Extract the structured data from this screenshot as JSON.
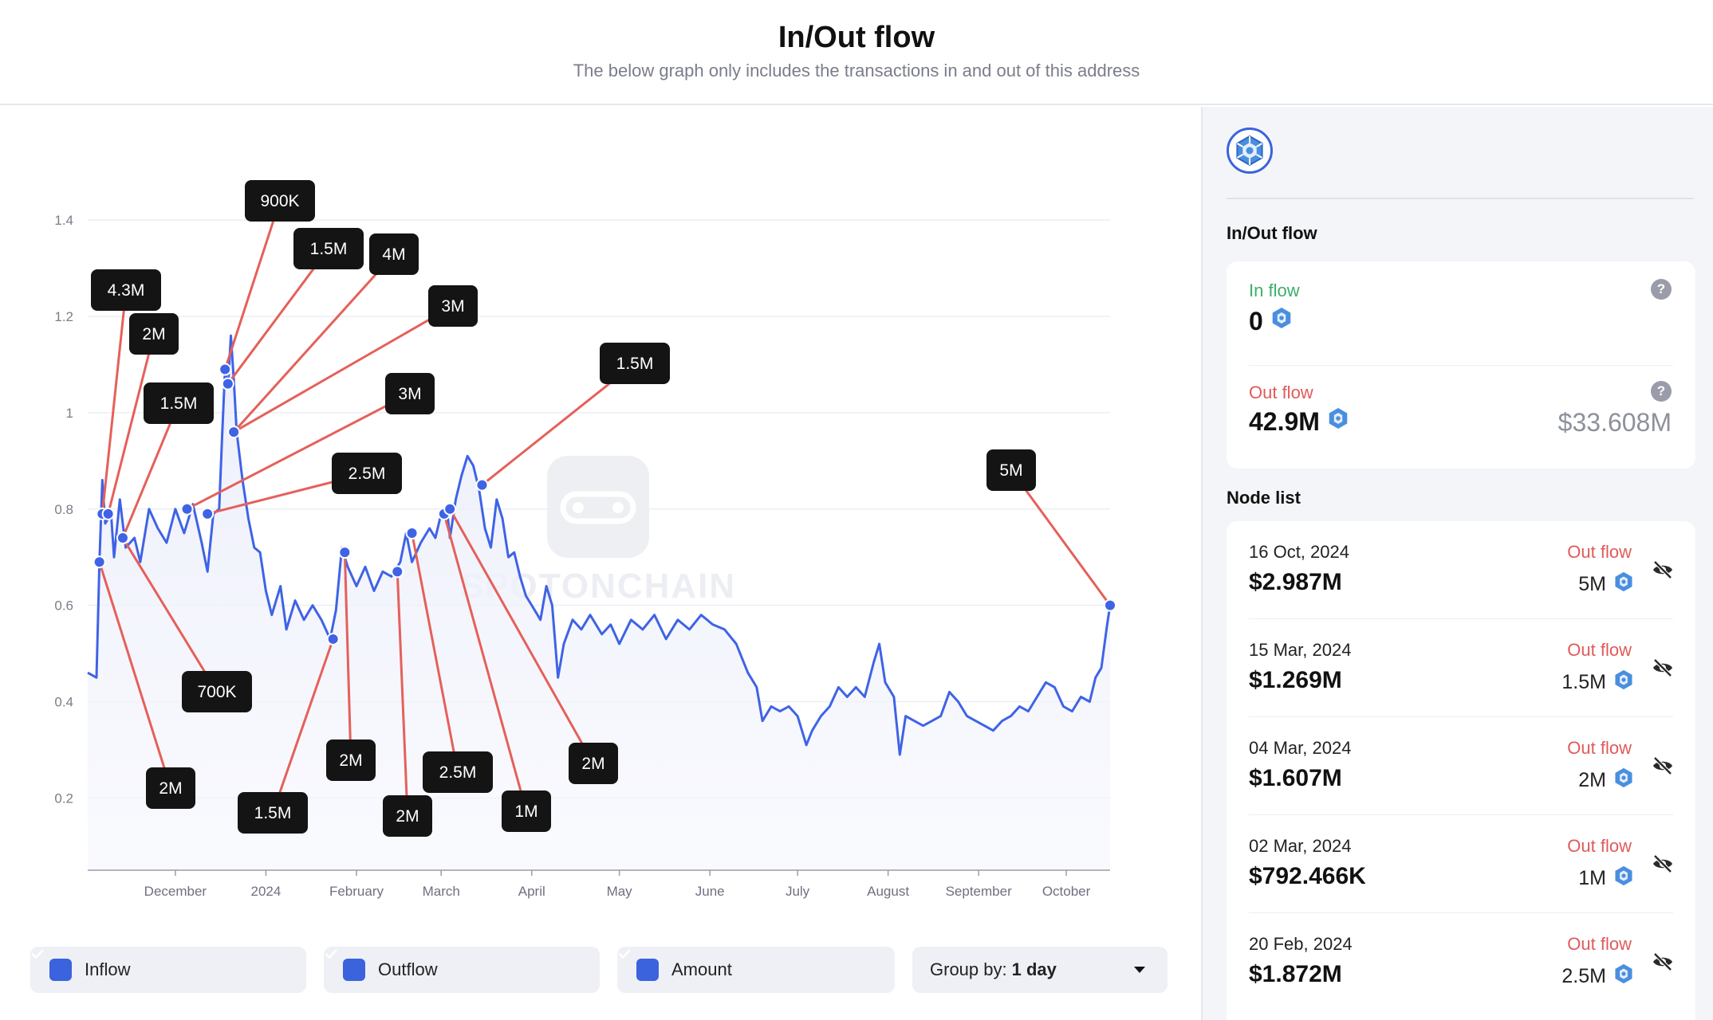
{
  "header": {
    "title": "In/Out flow",
    "subtitle": "The below graph only includes the transactions in and out of this address"
  },
  "colors": {
    "line": "#3f63e6",
    "annotation_line": "#e5605a",
    "label_bg": "#141414",
    "inflow_text": "#3cae6a",
    "outflow_text": "#e05a5a",
    "checkbox": "#3a63dd"
  },
  "chart_data": {
    "type": "line",
    "title": "",
    "xlabel": "",
    "ylabel": "",
    "ylim": [
      0.05,
      1.45
    ],
    "yticks": [
      "1.4",
      "1.2",
      "1",
      "0.8",
      "0.6",
      "0.4",
      "0.2"
    ],
    "ytick_values": [
      1.4,
      1.2,
      1.0,
      0.8,
      0.6,
      0.4,
      0.2
    ],
    "xlim": [
      "2023-11-01",
      "2024-10-16"
    ],
    "xticks": [
      {
        "label": "December",
        "date": "2023-12-01"
      },
      {
        "label": "2024",
        "date": "2024-01-01"
      },
      {
        "label": "February",
        "date": "2024-02-01"
      },
      {
        "label": "March",
        "date": "2024-03-01"
      },
      {
        "label": "April",
        "date": "2024-04-01"
      },
      {
        "label": "May",
        "date": "2024-05-01"
      },
      {
        "label": "June",
        "date": "2024-06-01"
      },
      {
        "label": "July",
        "date": "2024-07-01"
      },
      {
        "label": "August",
        "date": "2024-08-01"
      },
      {
        "label": "September",
        "date": "2024-09-01"
      },
      {
        "label": "October",
        "date": "2024-10-01"
      }
    ],
    "grid": true,
    "watermark": "SPOTONCHAIN",
    "series": [
      {
        "values": [
          [
            "2023-11-01",
            0.46
          ],
          [
            "2023-11-04",
            0.45
          ],
          [
            "2023-11-05",
            0.69
          ],
          [
            "2023-11-06",
            0.86
          ],
          [
            "2023-11-07",
            0.77
          ],
          [
            "2023-11-09",
            0.79
          ],
          [
            "2023-11-10",
            0.7
          ],
          [
            "2023-11-12",
            0.82
          ],
          [
            "2023-11-14",
            0.72
          ],
          [
            "2023-11-17",
            0.74
          ],
          [
            "2023-11-19",
            0.69
          ],
          [
            "2023-11-22",
            0.8
          ],
          [
            "2023-11-25",
            0.76
          ],
          [
            "2023-11-28",
            0.73
          ],
          [
            "2023-12-01",
            0.8
          ],
          [
            "2023-12-04",
            0.75
          ],
          [
            "2023-12-07",
            0.81
          ],
          [
            "2023-12-10",
            0.73
          ],
          [
            "2023-12-12",
            0.67
          ],
          [
            "2023-12-14",
            0.79
          ],
          [
            "2023-12-16",
            0.8
          ],
          [
            "2023-12-17",
            0.95
          ],
          [
            "2023-12-18",
            1.09
          ],
          [
            "2023-12-19",
            1.05
          ],
          [
            "2023-12-20",
            1.16
          ],
          [
            "2023-12-21",
            1.07
          ],
          [
            "2023-12-22",
            0.96
          ],
          [
            "2023-12-24",
            0.86
          ],
          [
            "2023-12-26",
            0.78
          ],
          [
            "2023-12-28",
            0.72
          ],
          [
            "2023-12-30",
            0.71
          ],
          [
            "2024-01-01",
            0.63
          ],
          [
            "2024-01-03",
            0.58
          ],
          [
            "2024-01-06",
            0.64
          ],
          [
            "2024-01-08",
            0.55
          ],
          [
            "2024-01-11",
            0.61
          ],
          [
            "2024-01-14",
            0.57
          ],
          [
            "2024-01-17",
            0.6
          ],
          [
            "2024-01-20",
            0.57
          ],
          [
            "2024-01-23",
            0.53
          ],
          [
            "2024-01-25",
            0.59
          ],
          [
            "2024-01-27",
            0.72
          ],
          [
            "2024-01-29",
            0.68
          ],
          [
            "2024-02-01",
            0.64
          ],
          [
            "2024-02-04",
            0.68
          ],
          [
            "2024-02-07",
            0.63
          ],
          [
            "2024-02-10",
            0.67
          ],
          [
            "2024-02-13",
            0.66
          ],
          [
            "2024-02-16",
            0.69
          ],
          [
            "2024-02-18",
            0.75
          ],
          [
            "2024-02-20",
            0.69
          ],
          [
            "2024-02-23",
            0.73
          ],
          [
            "2024-02-26",
            0.76
          ],
          [
            "2024-02-28",
            0.74
          ],
          [
            "2024-03-01",
            0.79
          ],
          [
            "2024-03-03",
            0.8
          ],
          [
            "2024-03-04",
            0.74
          ],
          [
            "2024-03-06",
            0.82
          ],
          [
            "2024-03-08",
            0.87
          ],
          [
            "2024-03-10",
            0.91
          ],
          [
            "2024-03-12",
            0.89
          ],
          [
            "2024-03-14",
            0.84
          ],
          [
            "2024-03-16",
            0.76
          ],
          [
            "2024-03-18",
            0.72
          ],
          [
            "2024-03-20",
            0.82
          ],
          [
            "2024-03-22",
            0.78
          ],
          [
            "2024-03-24",
            0.7
          ],
          [
            "2024-03-26",
            0.71
          ],
          [
            "2024-03-28",
            0.66
          ],
          [
            "2024-03-30",
            0.62
          ],
          [
            "2024-04-01",
            0.6
          ],
          [
            "2024-04-04",
            0.57
          ],
          [
            "2024-04-06",
            0.64
          ],
          [
            "2024-04-08",
            0.6
          ],
          [
            "2024-04-10",
            0.45
          ],
          [
            "2024-04-12",
            0.52
          ],
          [
            "2024-04-15",
            0.57
          ],
          [
            "2024-04-18",
            0.55
          ],
          [
            "2024-04-21",
            0.58
          ],
          [
            "2024-04-25",
            0.54
          ],
          [
            "2024-04-28",
            0.56
          ],
          [
            "2024-05-01",
            0.52
          ],
          [
            "2024-05-05",
            0.57
          ],
          [
            "2024-05-09",
            0.55
          ],
          [
            "2024-05-13",
            0.58
          ],
          [
            "2024-05-17",
            0.53
          ],
          [
            "2024-05-21",
            0.57
          ],
          [
            "2024-05-25",
            0.55
          ],
          [
            "2024-05-29",
            0.58
          ],
          [
            "2024-06-02",
            0.56
          ],
          [
            "2024-06-06",
            0.55
          ],
          [
            "2024-06-10",
            0.52
          ],
          [
            "2024-06-14",
            0.46
          ],
          [
            "2024-06-17",
            0.43
          ],
          [
            "2024-06-19",
            0.36
          ],
          [
            "2024-06-22",
            0.39
          ],
          [
            "2024-06-25",
            0.38
          ],
          [
            "2024-06-28",
            0.39
          ],
          [
            "2024-07-01",
            0.37
          ],
          [
            "2024-07-04",
            0.31
          ],
          [
            "2024-07-06",
            0.34
          ],
          [
            "2024-07-09",
            0.37
          ],
          [
            "2024-07-12",
            0.39
          ],
          [
            "2024-07-15",
            0.43
          ],
          [
            "2024-07-18",
            0.41
          ],
          [
            "2024-07-21",
            0.43
          ],
          [
            "2024-07-24",
            0.41
          ],
          [
            "2024-07-27",
            0.48
          ],
          [
            "2024-07-29",
            0.52
          ],
          [
            "2024-07-31",
            0.44
          ],
          [
            "2024-08-03",
            0.41
          ],
          [
            "2024-08-05",
            0.29
          ],
          [
            "2024-08-07",
            0.37
          ],
          [
            "2024-08-10",
            0.36
          ],
          [
            "2024-08-13",
            0.35
          ],
          [
            "2024-08-16",
            0.36
          ],
          [
            "2024-08-19",
            0.37
          ],
          [
            "2024-08-22",
            0.42
          ],
          [
            "2024-08-25",
            0.4
          ],
          [
            "2024-08-28",
            0.37
          ],
          [
            "2024-08-31",
            0.36
          ],
          [
            "2024-09-03",
            0.35
          ],
          [
            "2024-09-06",
            0.34
          ],
          [
            "2024-09-09",
            0.36
          ],
          [
            "2024-09-12",
            0.37
          ],
          [
            "2024-09-15",
            0.39
          ],
          [
            "2024-09-18",
            0.38
          ],
          [
            "2024-09-21",
            0.41
          ],
          [
            "2024-09-24",
            0.44
          ],
          [
            "2024-09-27",
            0.43
          ],
          [
            "2024-09-30",
            0.39
          ],
          [
            "2024-10-03",
            0.38
          ],
          [
            "2024-10-06",
            0.41
          ],
          [
            "2024-10-09",
            0.4
          ],
          [
            "2024-10-11",
            0.45
          ],
          [
            "2024-10-13",
            0.47
          ],
          [
            "2024-10-15",
            0.56
          ],
          [
            "2024-10-16",
            0.6
          ]
        ]
      }
    ],
    "annotations": [
      {
        "label": "4.3M",
        "date": "2023-11-06",
        "value": 0.79
      },
      {
        "label": "2M",
        "date": "2023-11-08",
        "value": 0.79
      },
      {
        "label": "1.5M",
        "date": "2023-11-13",
        "value": 0.74
      },
      {
        "label": "700K",
        "date": "2023-11-13",
        "value": 0.74
      },
      {
        "label": "2M",
        "date": "2023-11-05",
        "value": 0.69
      },
      {
        "label": "900K",
        "date": "2023-12-18",
        "value": 1.09
      },
      {
        "label": "1.5M",
        "date": "2023-12-19",
        "value": 1.06
      },
      {
        "label": "4M",
        "date": "2023-12-21",
        "value": 0.96
      },
      {
        "label": "3M",
        "date": "2023-12-21",
        "value": 0.96
      },
      {
        "label": "3M",
        "date": "2023-12-05",
        "value": 0.8
      },
      {
        "label": "2.5M",
        "date": "2023-12-12",
        "value": 0.79
      },
      {
        "label": "1.5M",
        "date": "2024-01-24",
        "value": 0.53
      },
      {
        "label": "2M",
        "date": "2024-01-28",
        "value": 0.71
      },
      {
        "label": "2M",
        "date": "2024-02-15",
        "value": 0.67
      },
      {
        "label": "2.5M",
        "date": "2024-02-20",
        "value": 0.75
      },
      {
        "label": "1M",
        "date": "2024-03-02",
        "value": 0.79
      },
      {
        "label": "2M",
        "date": "2024-03-04",
        "value": 0.8
      },
      {
        "label": "1.5M",
        "date": "2024-03-15",
        "value": 0.85
      },
      {
        "label": "5M",
        "date": "2024-10-16",
        "value": 0.6
      }
    ]
  },
  "controls": {
    "inflow_label": "Inflow",
    "outflow_label": "Outflow",
    "amount_label": "Amount",
    "group_by_label": "Group by:",
    "group_by_value": "1 day"
  },
  "sidebar": {
    "section_title": "In/Out flow",
    "inflow": {
      "label": "In flow",
      "value": "0",
      "help": "?"
    },
    "outflow": {
      "label": "Out flow",
      "value": "42.9M",
      "usd": "$33.608M",
      "help": "?"
    },
    "node_list_title": "Node list",
    "nodes": [
      {
        "date": "16 Oct, 2024",
        "usd": "$2.987M",
        "direction": "Out flow",
        "amount": "5M"
      },
      {
        "date": "15 Mar, 2024",
        "usd": "$1.269M",
        "direction": "Out flow",
        "amount": "1.5M"
      },
      {
        "date": "04 Mar, 2024",
        "usd": "$1.607M",
        "direction": "Out flow",
        "amount": "2M"
      },
      {
        "date": "02 Mar, 2024",
        "usd": "$792.466K",
        "direction": "Out flow",
        "amount": "1M"
      },
      {
        "date": "20 Feb, 2024",
        "usd": "$1.872M",
        "direction": "Out flow",
        "amount": "2.5M"
      }
    ]
  }
}
